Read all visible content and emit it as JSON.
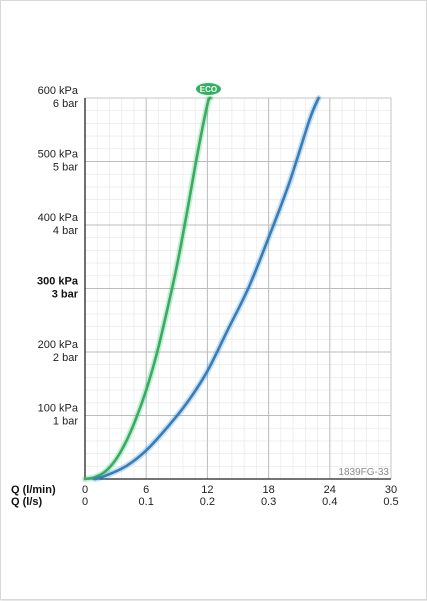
{
  "chart_data": {
    "type": "line",
    "title": "",
    "code": "1839FG-33",
    "badge": "ECO",
    "colors": {
      "eco": "#2db35d",
      "standard": "#2f7fc1",
      "grid": "#bdbdbd",
      "minor_grid": "#e6e6e6"
    },
    "x_axis": {
      "label_primary": "Q (l/min)",
      "label_secondary": "Q (l/s)",
      "range": [
        0,
        30
      ],
      "ticks_primary": [
        "0",
        "6",
        "12",
        "18",
        "24",
        "30"
      ],
      "ticks_secondary": [
        "0",
        "0.1",
        "0.2",
        "0.3",
        "0.4",
        "0.5"
      ]
    },
    "y_axis": {
      "range": [
        0,
        600
      ],
      "ticks": [
        {
          "value": 100,
          "kpa": "100 kPa",
          "bar": "1 bar",
          "bold": false
        },
        {
          "value": 200,
          "kpa": "200 kPa",
          "bar": "2 bar",
          "bold": false
        },
        {
          "value": 300,
          "kpa": "300 kPa",
          "bar": "3 bar",
          "bold": true
        },
        {
          "value": 400,
          "kpa": "400 kPa",
          "bar": "4 bar",
          "bold": false
        },
        {
          "value": 500,
          "kpa": "500 kPa",
          "bar": "5 bar",
          "bold": false
        },
        {
          "value": 600,
          "kpa": "600 kPa",
          "bar": "6 bar",
          "bold": false
        }
      ]
    },
    "grid": true,
    "series": [
      {
        "color": "#2db35d",
        "x": [
          0,
          1,
          2,
          3,
          4,
          5,
          6,
          7,
          8,
          9,
          10,
          11,
          12,
          12.3
        ],
        "y": [
          0,
          3,
          12,
          30,
          58,
          95,
          140,
          195,
          262,
          335,
          420,
          510,
          590,
          600
        ]
      },
      {
        "color": "#2f7fc1",
        "x": [
          1,
          2,
          4,
          6,
          8,
          10,
          12,
          14,
          16,
          18,
          20,
          22,
          22.9
        ],
        "y": [
          0,
          5,
          20,
          45,
          80,
          120,
          170,
          235,
          300,
          380,
          465,
          565,
          600
        ]
      }
    ]
  }
}
